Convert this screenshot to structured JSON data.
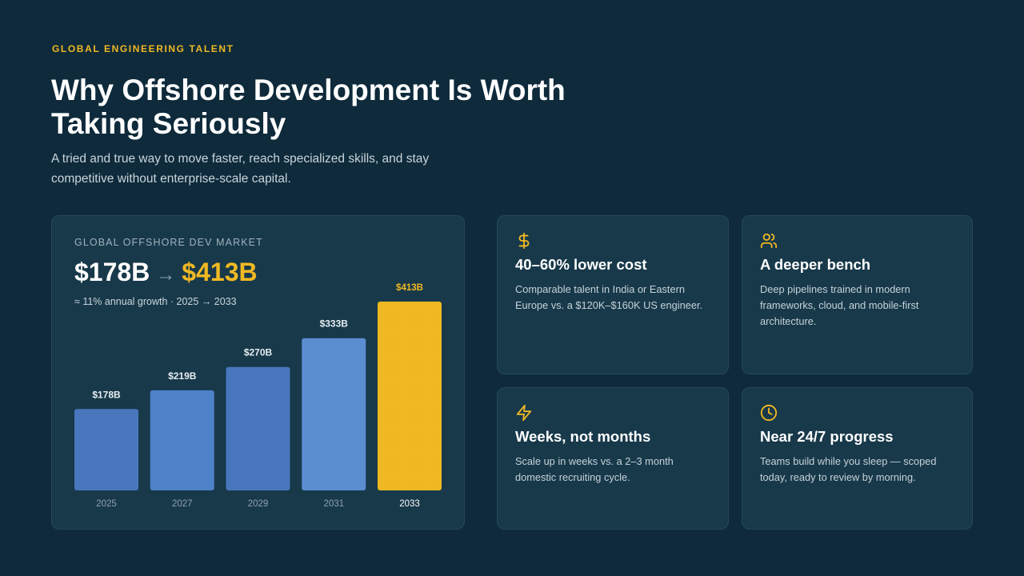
{
  "header": {
    "eyebrow": "GLOBAL ENGINEERING TALENT",
    "title": "Why Offshore Development Is Worth Taking Seriously",
    "subtitle": "A tried and true way to move faster, reach specialized skills, and stay competitive without enterprise-scale capital."
  },
  "market_card": {
    "label": "GLOBAL OFFSHORE DEV MARKET",
    "from_value": "$178B",
    "arrow": "→",
    "to_value": "$413B",
    "growth_note": "≈ 11% annual growth · 2025 → 2033"
  },
  "chart_data": {
    "type": "bar",
    "categories": [
      "2025",
      "2027",
      "2029",
      "2031",
      "2033"
    ],
    "values": [
      178,
      219,
      270,
      333,
      413
    ],
    "data_labels": [
      "$178B",
      "$219B",
      "$270B",
      "$333B",
      "$413B"
    ],
    "ylim": [
      0,
      413
    ],
    "grid": false,
    "title": "",
    "xlabel": "",
    "ylabel": "",
    "colors": {
      "bar": "#4877be",
      "bar_mid": "#4d82c8",
      "bar_light": "#5b8ed1",
      "highlight": "#f0b923",
      "data_label": "#e6edf2",
      "highlight_label": "#f0b923",
      "tick": "#8da2ae",
      "highlight_tick": "#ffffff"
    }
  },
  "features": [
    {
      "icon": "dollar-icon",
      "title": "40–60% lower cost",
      "description": "Comparable talent in India or Eastern Europe vs. a $120K–$160K US engineer."
    },
    {
      "icon": "users-icon",
      "title": "A deeper bench",
      "description": "Deep pipelines trained in modern frameworks, cloud, and mobile-first architecture."
    },
    {
      "icon": "lightning-icon",
      "title": "Weeks, not months",
      "description": "Scale up in weeks vs. a 2–3 month domestic recruiting cycle."
    },
    {
      "icon": "clock-icon",
      "title": "Near 24/7 progress",
      "description": "Teams build while you sleep — scoped today, ready to review by morning."
    }
  ],
  "colors": {
    "background": "#0e2a3b",
    "card": "#18394a",
    "accent": "#f0b923"
  }
}
